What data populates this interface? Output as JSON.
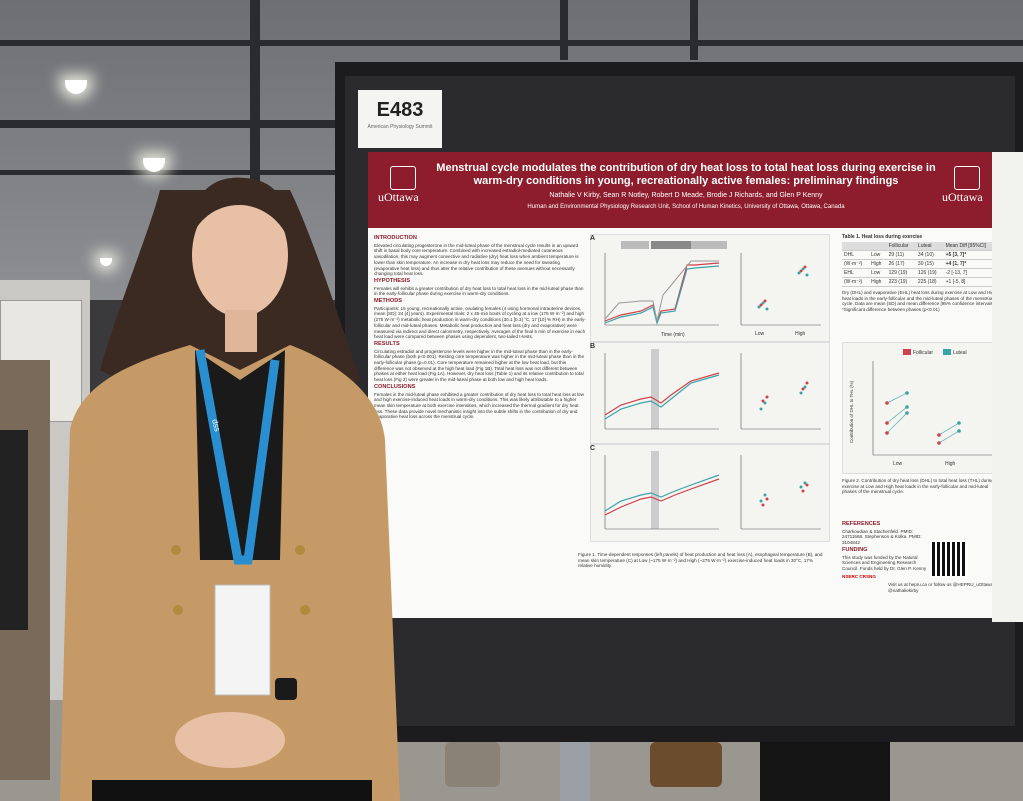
{
  "booth_label": {
    "code": "E483",
    "tiny": "American Physiology Summit"
  },
  "poster": {
    "title": "Menstrual cycle modulates the contribution of dry heat loss to total heat loss during exercise in warm-dry conditions in young, recreationally active females: preliminary findings",
    "authors": "Nathalie V Kirby, Sean R Notley, Robert D Meade, Brodie J Richards, and Glen P Kenny",
    "affiliation": "Human and Environmental Physiology Research Unit, School of Human Kinetics, University of Ottawa, Ottawa, Canada",
    "logo_left": "uOttawa",
    "logo_right": "uOttawa",
    "sections": {
      "introduction_heading": "INTRODUCTION",
      "introduction_text": "Elevated circulating progesterone in the mid-luteal phase of the menstrual cycle results in an upward shift in basal body core temperature. Combined with increased estradiol-mediated cutaneous vasodilation, this may augment convective and radiative (dry) heat loss when ambient temperature is lower than skin temperature. An increase in dry heat loss may reduce the need for sweating (evaporative heat loss) and thus alter the relative contribution of these avenues without necessarily changing total heat loss.",
      "hypothesis_heading": "HYPOTHESIS",
      "hypothesis_text": "Females will exhibit a greater contribution of dry heat loss to total heat loss in the mid-luteal phase than in the early-follicular phase during exercise in warm-dry conditions.",
      "methods_heading": "METHODS",
      "methods_text": "Participants: 15 young, recreationally active, ovulating females (4 using hormonal intrauterine devices, mean [SD]: 24 [4] years). Experimental trials: 2 x 45-min bouts of cycling at a low (175 W·m⁻²) and high (275 W·m⁻²) metabolic heat production in warm-dry conditions (30.1 [0.3] °C, 17 [10] % RH) in the early-follicular and mid-luteal phases. Metabolic heat production and heat loss (dry and evaporative) were measured via indirect and direct calorimetry, respectively. Averages of the final 5 min of exercise in each heat load were compared between phases using dependent, two-tailed t-tests.",
      "results_heading": "RESULTS",
      "results_text": "Circulating estradiol and progesterone levels were higher in the mid-luteal phase than in the early-follicular phase (both p<0.001). Resting core temperature was higher in the mid-luteal phase than in the early-follicular phase (p=0.01). Core temperature remained higher at the low heat load, but this difference was not observed at the high heat load (Fig 1B). Total heat loss was not different between phases at either heat load (Fig 1A). However, dry heat loss (Table 1) and its relative contribution to total heat loss (Fig 2) were greater in the mid-luteal phase at both low and high heat loads.",
      "conclusions_heading": "CONCLUSIONS",
      "conclusions_text": "Females in the mid-luteal phase exhibited a greater contribution of dry heat loss to total heat loss at low and high exercise-induced heat loads in warm-dry conditions. This was likely attributable to a higher mean skin temperature at both exercise intensities, which increased the thermal gradient for dry heat loss. These data provide novel mechanistic insight into the subtle shifts in the contribution of dry and evaporative heat loss across the menstrual cycle."
    },
    "figure": {
      "panel_a": "A",
      "panel_b": "B",
      "panel_c": "C",
      "rest_label": "Rest",
      "low_label": "Low (~175 W·m⁻²)",
      "high_label": "High (~275 W·m⁻²)",
      "time_axis": "Time (min)",
      "low_tick": "Low",
      "high_tick": "High",
      "caption": "Figure 1. Time-dependent responses (left panels) of heat production and heat loss (A), esophageal temperature (B), and mean skin temperature (C) at Low (~175 W·m⁻²) and High (~275 W·m⁻²) exercise-induced heat loads in 30°C, 17% relative humidity."
    },
    "table": {
      "title": "Table 1. Heat loss during exercise",
      "headers": [
        "",
        "",
        "Follicular",
        "Luteal",
        "Mean Diff [95%CI]"
      ],
      "rows": [
        [
          "DHL",
          "Low",
          "29 (11)",
          "34 (10)",
          "+5 [3, 7]*"
        ],
        [
          "(W·m⁻²)",
          "High",
          "26 (17)",
          "30 (15)",
          "+4 [1, 7]*"
        ],
        [
          "EHL",
          "Low",
          "129 (19)",
          "126 (19)",
          "-2 [-13, 7]"
        ],
        [
          "(W·m⁻²)",
          "High",
          "223 (19)",
          "225 (18)",
          "+1 [-5, 8]"
        ]
      ],
      "note": "Dry (DHL) and evaporative (EHL) heat loss during exercise at Low and High heat loads in the early-follicular and the mid-luteal phases of the menstrual cycle. Data are mean (SD) and mean difference [95% confidence intervals]. *Significant difference between phases (p<0.01)"
    },
    "fig2": {
      "legend_follicular": "Follicular",
      "legend_luteal": "Luteal",
      "ylabel": "Contribution of DHL to THL (%)",
      "caption": "Figure 2. Contribution of dry heat loss (DHL) to total heat loss (THL) during exercise at Low and High heat loads in the early-follicular and mid-luteal phases of the menstrual cycle."
    },
    "references_heading": "REFERENCES",
    "references_text": "Charkoudian & Stachenfeld. PMID: 24711568. Stephenson & Kolka. PMID: 3104842",
    "funding_heading": "FUNDING",
    "funding_text": "This study was funded by the Natural Sciences and Engineering Research Council. Funds held by Dr. Glen P. Kenny",
    "contact_text": "Visit us at hepru.ca or follow us @HEPRU_uOttawa & @nathaliekirby",
    "nserc": "NSERC CRSNG"
  },
  "lanyard_text": "dss",
  "colors": {
    "board": "#1c1c1e",
    "poster_header": "#8d1d2c",
    "jacket": "#c69a66",
    "follicular": "#d0414b",
    "luteal": "#3aa3a8"
  }
}
